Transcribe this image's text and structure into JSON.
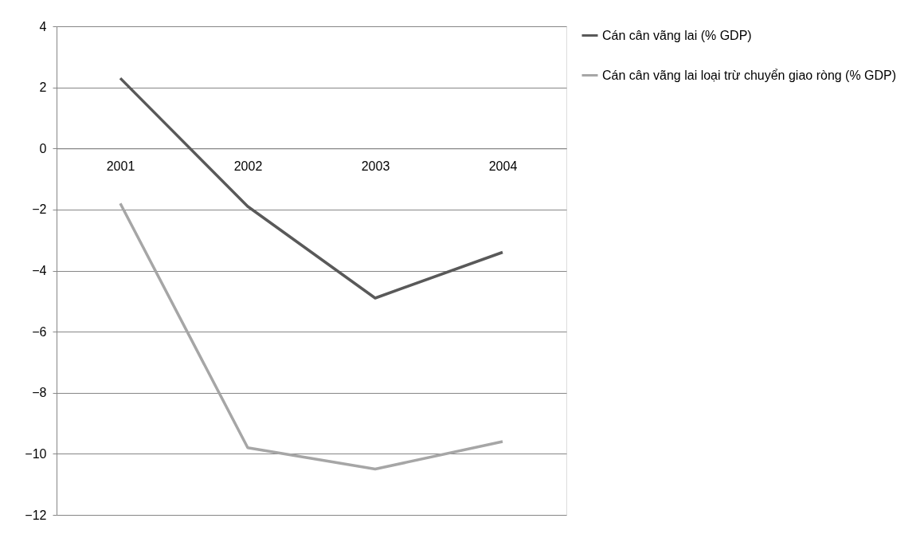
{
  "chart_data": {
    "type": "line",
    "categories": [
      "2001",
      "2002",
      "2003",
      "2004"
    ],
    "series": [
      {
        "name": "Cán cân vãng lai (% GDP)",
        "color": "#595959",
        "values": [
          2.3,
          -1.9,
          -4.9,
          -3.4
        ]
      },
      {
        "name": "Cán cân vãng lai loại trừ chuyển giao ròng (% GDP)",
        "color": "#a6a6a6",
        "values": [
          -1.8,
          -9.8,
          -10.5,
          -9.6
        ]
      }
    ],
    "ylim": [
      -12,
      4
    ],
    "yticks": [
      -12,
      -10,
      -8,
      -6,
      -4,
      -2,
      0,
      2,
      4
    ],
    "grid": "y",
    "legend": "right",
    "marker": "none",
    "line_style": "solid"
  }
}
